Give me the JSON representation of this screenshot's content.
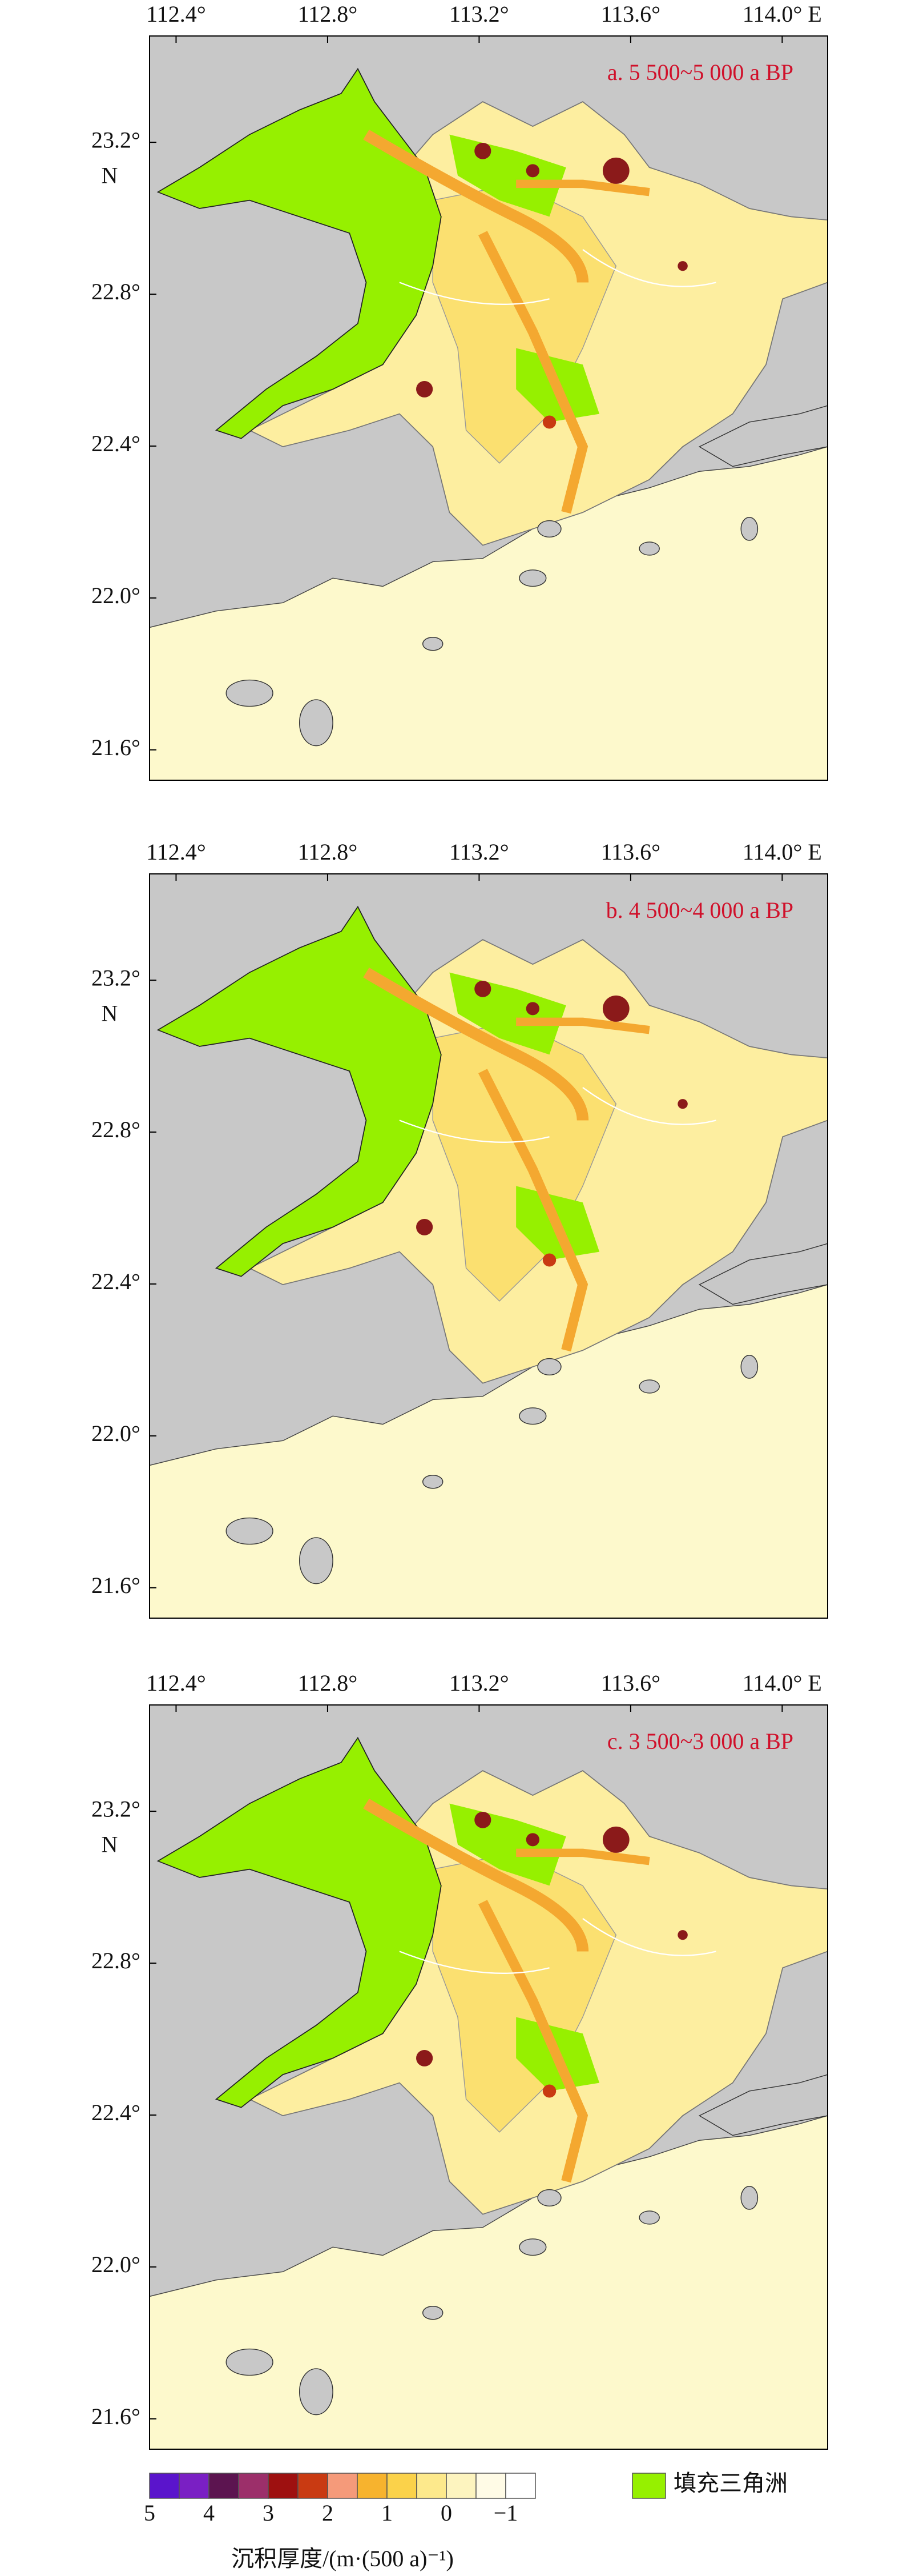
{
  "panels": [
    {
      "title": "a. 5 500~5 000 a BP",
      "xlim": [
        112.33,
        114.12
      ],
      "ylim": [
        21.52,
        23.48
      ],
      "xticks": [
        {
          "value": 112.4,
          "label": "112.4°"
        },
        {
          "value": 112.8,
          "label": "112.8°"
        },
        {
          "value": 113.2,
          "label": "113.2°"
        },
        {
          "value": 113.6,
          "label": "113.6°"
        },
        {
          "value": 114.0,
          "label": "114.0° E"
        }
      ],
      "yticks": [
        {
          "value": 23.2,
          "label": "23.2°"
        },
        {
          "value": 22.8,
          "label": "22.8°"
        },
        {
          "value": 22.4,
          "label": "22.4°"
        },
        {
          "value": 22.0,
          "label": "22.0°"
        },
        {
          "value": 21.6,
          "label": "21.6°"
        }
      ],
      "y_unit": "N"
    },
    {
      "title": "b. 4 500~4 000 a BP",
      "xlim": [
        112.33,
        114.12
      ],
      "ylim": [
        21.52,
        23.48
      ],
      "xticks": [
        {
          "value": 112.4,
          "label": "112.4°"
        },
        {
          "value": 112.8,
          "label": "112.8°"
        },
        {
          "value": 113.2,
          "label": "113.2°"
        },
        {
          "value": 113.6,
          "label": "113.6°"
        },
        {
          "value": 114.0,
          "label": "114.0° E"
        }
      ],
      "yticks": [
        {
          "value": 23.2,
          "label": "23.2°"
        },
        {
          "value": 22.8,
          "label": "22.8°"
        },
        {
          "value": 22.4,
          "label": "22.4°"
        },
        {
          "value": 22.0,
          "label": "22.0°"
        },
        {
          "value": 21.6,
          "label": "21.6°"
        }
      ],
      "y_unit": "N"
    },
    {
      "title": "c. 3 500~3 000 a BP",
      "xlim": [
        112.33,
        114.12
      ],
      "ylim": [
        21.52,
        23.48
      ],
      "xticks": [
        {
          "value": 112.4,
          "label": "112.4°"
        },
        {
          "value": 112.8,
          "label": "112.8°"
        },
        {
          "value": 113.2,
          "label": "113.2°"
        },
        {
          "value": 113.6,
          "label": "113.6°"
        },
        {
          "value": 114.0,
          "label": "114.0° E"
        }
      ],
      "yticks": [
        {
          "value": 23.2,
          "label": "23.2°"
        },
        {
          "value": 22.8,
          "label": "22.8°"
        },
        {
          "value": 22.4,
          "label": "22.4°"
        },
        {
          "value": 22.0,
          "label": "22.0°"
        },
        {
          "value": 21.6,
          "label": "21.6°"
        }
      ],
      "y_unit": "N"
    }
  ],
  "legend": {
    "colorbar_colors": [
      "#5a14cc",
      "#7a1fc4",
      "#5c1450",
      "#9c2f6a",
      "#9e1010",
      "#c93a12",
      "#f59a7a",
      "#f7b32e",
      "#fbd24a",
      "#fde98c",
      "#fdf4bf",
      "#fffbe6",
      "#ffffff"
    ],
    "colorbar_labels": [
      "5",
      "4",
      "3",
      "2",
      "1",
      "0",
      "−1"
    ],
    "colorbar_title": "沉积厚度/(m·(500 a)⁻¹)",
    "delta_color": "#96f000",
    "delta_label": "填充三角洲"
  }
}
